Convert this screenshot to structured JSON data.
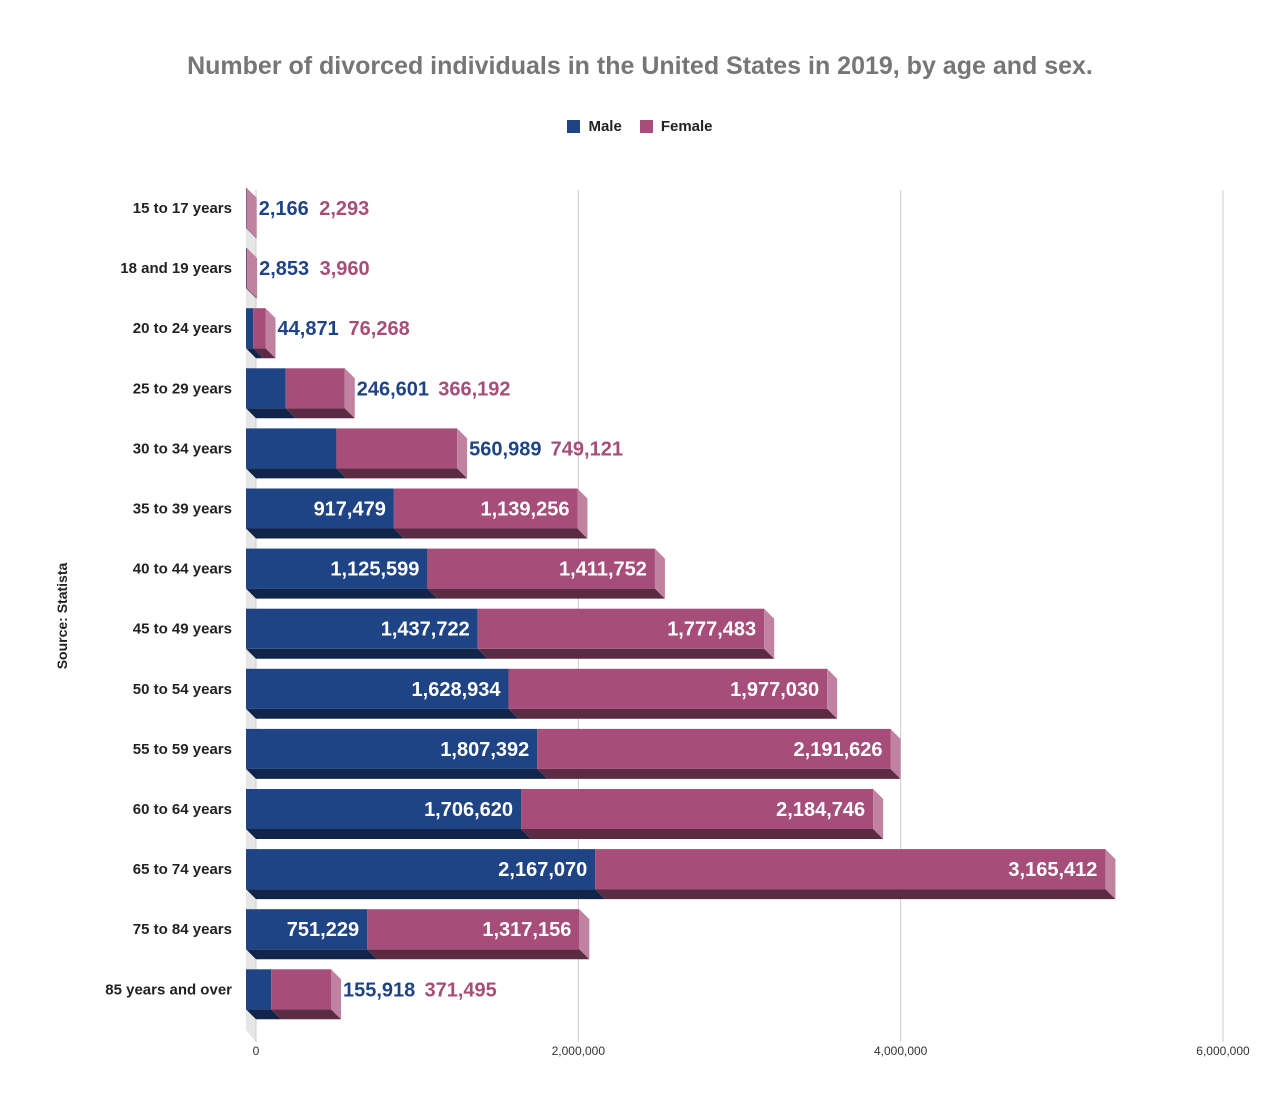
{
  "chart_data": {
    "type": "bar",
    "orientation": "horizontal",
    "stacked": true,
    "title": "Number of divorced individuals in the United States in 2019, by age and sex.",
    "source": "Source: Statista",
    "categories": [
      "15 to 17 years",
      "18 and 19 years",
      "20 to 24 years",
      "25 to 29 years",
      "30 to 34 years",
      "35 to 39 years",
      "40 to 44 years",
      "45 to 49 years",
      "50 to 54 years",
      "55 to 59 years",
      "60 to 64 years",
      "65 to 74 years",
      "75 to 84 years",
      "85 years and over"
    ],
    "series": [
      {
        "name": "Male",
        "color": "#1f4486",
        "values": [
          2166,
          2853,
          44871,
          246601,
          560989,
          917479,
          1125599,
          1437722,
          1628934,
          1807392,
          1706620,
          2167070,
          751229,
          155918
        ]
      },
      {
        "name": "Female",
        "color": "#a64d79",
        "values": [
          2293,
          3960,
          76268,
          366192,
          749121,
          1139256,
          1411752,
          1777483,
          1977030,
          2191626,
          2184746,
          3165412,
          1317156,
          371495
        ]
      }
    ],
    "labels": {
      "Male": [
        "2,166",
        "2,853",
        "44,871",
        "246,601",
        "560,989",
        "917,479",
        "1,125,599",
        "1,437,722",
        "1,628,934",
        "1,807,392",
        "1,706,620",
        "2,167,070",
        "751,229",
        "155,918"
      ],
      "Female": [
        "2,293",
        "3,960",
        "76,268",
        "366,192",
        "749,121",
        "1,139,256",
        "1,411,752",
        "1,777,483",
        "1,977,030",
        "2,191,626",
        "2,184,746",
        "3,165,412",
        "1,317,156",
        "371,495"
      ]
    },
    "xlim": [
      0,
      6000000
    ],
    "xticks": [
      0,
      2000000,
      4000000,
      6000000
    ],
    "xtick_labels": [
      "0",
      "2,000,000",
      "4,000,000",
      "6,000,000"
    ],
    "grid": true,
    "legend": "top-center"
  }
}
